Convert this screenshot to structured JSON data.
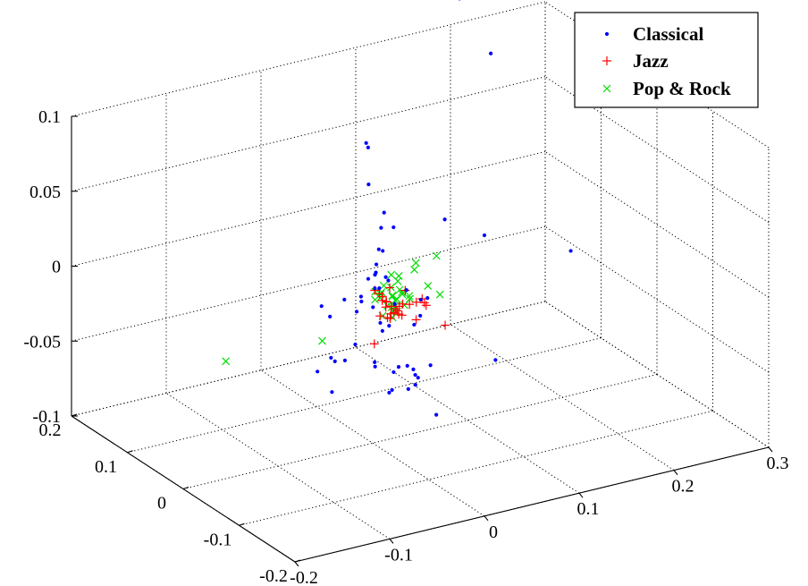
{
  "chart_data": {
    "type": "scatter",
    "projection": "3d",
    "title": "",
    "xlabel": "",
    "ylabel": "",
    "zlabel": "",
    "xlim": [
      -0.2,
      0.3
    ],
    "ylim": [
      -0.2,
      0.2
    ],
    "zlim": [
      -0.1,
      0.1
    ],
    "grid": true,
    "legend_position": "top-right",
    "x_ticks": [
      -0.2,
      -0.1,
      0,
      0.1,
      0.2,
      0.3
    ],
    "x_tick_labels": [
      "-0.2",
      "-0.1",
      "0",
      "0.1",
      "0.2",
      "0.3"
    ],
    "y_ticks": [
      -0.2,
      -0.1,
      0,
      0.1,
      0.2
    ],
    "y_tick_labels": [
      "-0.2",
      "-0.1",
      "0",
      "0.1",
      "0.2"
    ],
    "z_ticks": [
      -0.1,
      -0.05,
      0,
      0.05,
      0.1
    ],
    "z_tick_labels": [
      "-0.1",
      "-0.05",
      "0",
      "0.05",
      "0.1"
    ],
    "colors": {
      "Classical": "#0000ff",
      "Jazz": "#ff0000",
      "Pop & Rock": "#00dd00"
    },
    "series": [
      {
        "name": "Classical",
        "marker": "dot",
        "points": [
          [
            -0.001,
            0.01,
            0.098
          ],
          [
            0.004,
            0.015,
            0.093
          ],
          [
            0.16,
            0.06,
            0.121
          ],
          [
            0.16,
            0.116,
            0.144
          ],
          [
            -0.002,
            0.004,
            0.072
          ],
          [
            0.012,
            0.0,
            0.052
          ],
          [
            0.013,
            0.007,
            0.04
          ],
          [
            0.079,
            0.005,
            0.036
          ],
          [
            0.01,
            -0.001,
            0.027
          ],
          [
            0.032,
            0.017,
            0.035
          ],
          [
            -0.01,
            -0.021,
            0.019
          ],
          [
            0.007,
            0.001,
            0.028
          ],
          [
            0.005,
            0.002,
            0.018
          ],
          [
            -0.044,
            0.017,
            -0.006
          ],
          [
            -0.024,
            0.01,
            -0.003
          ],
          [
            0.004,
            0.003,
            0.002
          ],
          [
            0.004,
            -0.005,
            0.004
          ],
          [
            0.011,
            0.013,
            0.009
          ],
          [
            0.02,
            0.006,
            0.004
          ],
          [
            0.022,
            0.014,
            0.004
          ],
          [
            0.015,
            -0.014,
            -0.006
          ],
          [
            0.01,
            0.025,
            0.002
          ],
          [
            -0.006,
            0.01,
            -0.007
          ],
          [
            -0.011,
            0.01,
            -0.013
          ],
          [
            0.003,
            0.026,
            -0.009
          ],
          [
            0.056,
            0.009,
            -0.015
          ],
          [
            0.051,
            0.026,
            -0.012
          ],
          [
            0.199,
            -0.017,
            0.002
          ],
          [
            0.158,
            0.068,
            -0.002
          ],
          [
            0.005,
            0.008,
            -0.012
          ],
          [
            0.039,
            -0.008,
            -0.025
          ],
          [
            0.049,
            -0.002,
            -0.022
          ],
          [
            0.079,
            0.036,
            -0.024
          ],
          [
            0.022,
            0.008,
            -0.027
          ],
          [
            0.008,
            0.0,
            -0.021
          ],
          [
            0.002,
            -0.014,
            -0.022
          ],
          [
            -0.018,
            0.046,
            -0.024
          ],
          [
            -0.019,
            -0.001,
            -0.031
          ],
          [
            -0.021,
            0.032,
            -0.05
          ],
          [
            -0.02,
            0.065,
            -0.065
          ],
          [
            -0.011,
            0.056,
            -0.055
          ],
          [
            -0.014,
            0.026,
            -0.049
          ],
          [
            0.005,
            0.005,
            -0.048
          ],
          [
            0.037,
            -0.01,
            -0.054
          ],
          [
            0.025,
            -0.004,
            -0.052
          ],
          [
            0.015,
            -0.012,
            -0.052
          ],
          [
            0.009,
            0.011,
            -0.053
          ],
          [
            0.033,
            -0.006,
            -0.052
          ],
          [
            0.024,
            -0.023,
            -0.062
          ],
          [
            0.039,
            -0.01,
            -0.058
          ],
          [
            0.106,
            -0.04,
            -0.051
          ],
          [
            0.038,
            -0.012,
            -0.064
          ],
          [
            0.04,
            -0.046,
            -0.076
          ],
          [
            -0.01,
            0.056,
            -0.078
          ],
          [
            0.071,
            0.017,
            -0.063
          ],
          [
            0.052,
            0.007,
            -0.066
          ],
          [
            0.021,
            0.001,
            -0.068
          ],
          [
            0.028,
            0.018,
            -0.075
          ]
        ]
      },
      {
        "name": "Jazz",
        "marker": "plus",
        "points": [
          [
            0.005,
            0.005,
            0.0
          ],
          [
            0.01,
            0.005,
            -0.003
          ],
          [
            0.016,
            0.01,
            -0.007
          ],
          [
            0.013,
            0.005,
            -0.008
          ],
          [
            0.018,
            0.006,
            -0.01
          ],
          [
            0.02,
            0.01,
            -0.011
          ],
          [
            0.015,
            0.002,
            -0.012
          ],
          [
            0.028,
            0.0,
            -0.013
          ],
          [
            0.026,
            0.003,
            -0.015
          ],
          [
            0.03,
            0.007,
            -0.018
          ],
          [
            0.018,
            -0.002,
            -0.016
          ],
          [
            0.02,
            -0.004,
            -0.015
          ],
          [
            0.032,
            0.002,
            -0.02
          ],
          [
            0.031,
            0.006,
            -0.02
          ],
          [
            0.037,
            0.009,
            -0.015
          ],
          [
            0.04,
            0.002,
            -0.014
          ],
          [
            0.051,
            -0.002,
            -0.011
          ],
          [
            0.046,
            0.0,
            -0.013
          ],
          [
            0.057,
            0.001,
            -0.017
          ],
          [
            0.055,
            0.001,
            -0.015
          ],
          [
            0.022,
            0.004,
            -0.013
          ],
          [
            0.025,
            0.012,
            -0.003
          ],
          [
            0.039,
            0.008,
            -0.006
          ],
          [
            0.028,
            0.016,
            -0.025
          ],
          [
            0.025,
            0.016,
            -0.024
          ],
          [
            0.016,
            0.014,
            -0.021
          ],
          [
            0.08,
            0.006,
            -0.035
          ],
          [
            0.007,
            0.009,
            -0.037
          ],
          [
            0.057,
            0.019,
            -0.031
          ]
        ]
      },
      {
        "name": "Pop & Rock",
        "marker": "cross",
        "points": [
          [
            0.072,
            0.008,
            0.012
          ],
          [
            0.055,
            0.016,
            0.008
          ],
          [
            0.051,
            0.012,
            0.005
          ],
          [
            0.029,
            0.016,
            0.004
          ],
          [
            0.037,
            0.016,
            0.002
          ],
          [
            0.021,
            0.003,
            0.0
          ],
          [
            0.03,
            0.006,
            0.002
          ],
          [
            0.021,
            0.016,
            -0.002
          ],
          [
            0.009,
            0.011,
            -0.003
          ],
          [
            0.012,
            0.006,
            -0.004
          ],
          [
            0.032,
            0.006,
            -0.004
          ],
          [
            0.017,
            0.013,
            -0.005
          ],
          [
            0.025,
            0.007,
            -0.007
          ],
          [
            0.034,
            0.005,
            -0.007
          ],
          [
            0.038,
            0.012,
            -0.008
          ],
          [
            0.041,
            0.004,
            -0.009
          ],
          [
            0.06,
            0.003,
            -0.005
          ],
          [
            0.068,
            -0.005,
            -0.01
          ],
          [
            0.031,
            0.009,
            -0.011
          ],
          [
            0.032,
            0.014,
            -0.013
          ],
          [
            0.003,
            0.001,
            -0.005
          ],
          [
            0.038,
            -0.002,
            -0.009
          ],
          [
            0.016,
            0.014,
            -0.009
          ],
          [
            0.011,
            0.001,
            -0.017
          ],
          [
            0.018,
            0.004,
            -0.012
          ],
          [
            0.023,
            0.005,
            -0.014
          ],
          [
            0.027,
            0.007,
            -0.015
          ],
          [
            0.037,
            0.006,
            -0.015
          ],
          [
            0.029,
            0.011,
            -0.018
          ],
          [
            0.031,
            0.017,
            -0.025
          ],
          [
            -0.035,
            0.031,
            -0.034
          ],
          [
            0.036,
            0.026,
            -0.014
          ],
          [
            0.035,
            0.022,
            -0.023
          ],
          [
            -0.089,
            0.112,
            -0.059
          ]
        ]
      }
    ]
  },
  "legend": {
    "entries": [
      {
        "label": "Classical",
        "marker": "dot"
      },
      {
        "label": "Jazz",
        "marker": "plus"
      },
      {
        "label": "Pop & Rock",
        "marker": "cross"
      }
    ]
  }
}
